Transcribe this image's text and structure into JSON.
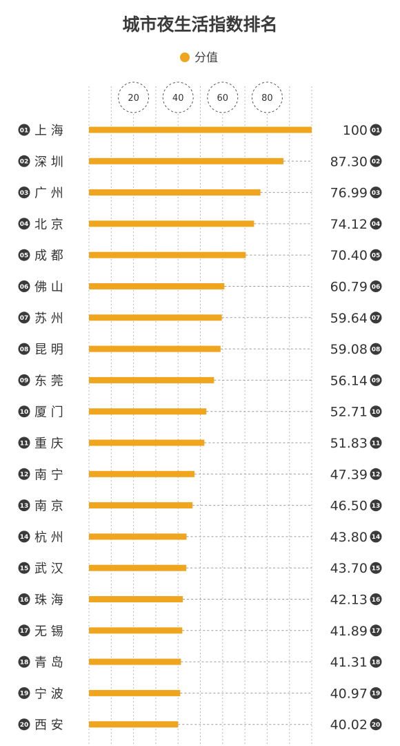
{
  "chart_data": {
    "type": "bar",
    "orientation": "horizontal",
    "title": "城市夜生活指数排名",
    "legend": {
      "label": "分值",
      "position": "top-center"
    },
    "colors": {
      "bar": "#f0a51f",
      "badge": "#3a3a3a",
      "grid": "#b8b8b8"
    },
    "xlim": [
      0,
      100
    ],
    "xticks": [
      20,
      40,
      60,
      80
    ],
    "grid": true,
    "ranks": [
      "01",
      "02",
      "03",
      "04",
      "05",
      "06",
      "07",
      "08",
      "09",
      "10",
      "11",
      "12",
      "13",
      "14",
      "15",
      "16",
      "17",
      "18",
      "19",
      "20"
    ],
    "categories": [
      "上 海",
      "深 圳",
      "广 州",
      "北 京",
      "成 都",
      "佛 山",
      "苏 州",
      "昆 明",
      "东 莞",
      "厦 门",
      "重 庆",
      "南 宁",
      "南 京",
      "杭 州",
      "武 汉",
      "珠 海",
      "无 锡",
      "青 岛",
      "宁 波",
      "西 安"
    ],
    "values": [
      100,
      87.3,
      76.99,
      74.12,
      70.4,
      60.79,
      59.64,
      59.08,
      56.14,
      52.71,
      51.83,
      47.39,
      46.5,
      43.8,
      43.7,
      42.13,
      41.89,
      41.31,
      40.97,
      40.02
    ],
    "value_labels": [
      "100",
      "87.30",
      "76.99",
      "74.12",
      "70.40",
      "60.79",
      "59.64",
      "59.08",
      "56.14",
      "52.71",
      "51.83",
      "47.39",
      "46.50",
      "43.80",
      "43.70",
      "42.13",
      "41.89",
      "41.31",
      "40.97",
      "40.02"
    ]
  }
}
